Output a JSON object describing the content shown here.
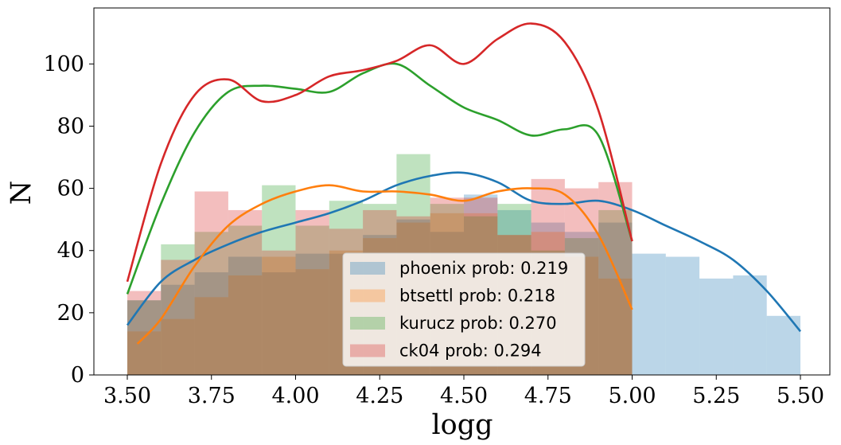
{
  "chart_data": {
    "type": "histogram",
    "xlabel": "logg",
    "ylabel": "N",
    "xlim": [
      3.4,
      5.55
    ],
    "ylim": [
      0,
      118
    ],
    "xticks": [
      "3.50",
      "3.75",
      "4.00",
      "4.25",
      "4.50",
      "4.75",
      "5.00",
      "5.25",
      "5.50"
    ],
    "yticks": [
      "0",
      "20",
      "40",
      "60",
      "80",
      "100"
    ],
    "legend_position": "lower-center",
    "series": [
      {
        "name": "phoenix prob: 0.219",
        "color": "#1f77b4",
        "bin_edges": [
          3.5,
          3.6,
          3.7,
          3.8,
          3.9,
          4.0,
          4.1,
          4.2,
          4.3,
          4.4,
          4.5,
          4.6,
          4.7,
          4.8,
          4.9,
          5.0,
          5.1,
          5.2,
          5.3,
          5.4,
          5.5
        ],
        "counts": [
          24,
          29,
          33,
          38,
          33,
          39,
          39,
          45,
          50,
          46,
          58,
          53,
          49,
          46,
          49,
          39,
          38,
          31,
          32,
          19
        ],
        "kde_x": [
          3.5,
          3.6,
          3.7,
          3.8,
          3.9,
          4.0,
          4.1,
          4.2,
          4.3,
          4.4,
          4.5,
          4.6,
          4.7,
          4.8,
          4.9,
          5.0,
          5.1,
          5.2,
          5.3,
          5.4,
          5.5
        ],
        "kde_y": [
          16,
          30,
          37,
          42,
          46,
          49,
          52,
          56,
          61,
          64,
          65,
          62,
          56,
          55,
          56,
          53,
          48,
          43,
          37,
          27,
          14
        ]
      },
      {
        "name": "btsettl prob: 0.218",
        "color": "#ff7f0e",
        "bin_edges": [
          3.5,
          3.6,
          3.7,
          3.8,
          3.9,
          4.0,
          4.1,
          4.2,
          4.3,
          4.4,
          4.5,
          4.6,
          4.7,
          4.8,
          4.9,
          5.0
        ],
        "counts": [
          14,
          18,
          25,
          32,
          38,
          34,
          40,
          44,
          49,
          52,
          52,
          45,
          46,
          38,
          31
        ],
        "kde_x": [
          3.53,
          3.6,
          3.7,
          3.8,
          3.9,
          4.0,
          4.1,
          4.2,
          4.3,
          4.4,
          4.5,
          4.6,
          4.7,
          4.8,
          4.9,
          5.0
        ],
        "kde_y": [
          10,
          18,
          35,
          48,
          55,
          59,
          61,
          59,
          59,
          58,
          56,
          59,
          60,
          58,
          45,
          21
        ]
      },
      {
        "name": "kurucz prob: 0.270",
        "color": "#2ca02c",
        "bin_edges": [
          3.5,
          3.6,
          3.7,
          3.8,
          3.9,
          4.0,
          4.1,
          4.2,
          4.3,
          4.4,
          4.5,
          4.6,
          4.7,
          4.8,
          4.9,
          5.0
        ],
        "counts": [
          24,
          42,
          46,
          48,
          61,
          48,
          56,
          55,
          71,
          55,
          51,
          55,
          40,
          44,
          53
        ],
        "kde_x": [
          3.5,
          3.6,
          3.7,
          3.8,
          3.9,
          4.0,
          4.1,
          4.2,
          4.3,
          4.4,
          4.5,
          4.6,
          4.7,
          4.8,
          4.9,
          5.0
        ],
        "kde_y": [
          26,
          55,
          78,
          91,
          93,
          92,
          91,
          97,
          100,
          93,
          86,
          82,
          77,
          79,
          77,
          43
        ]
      },
      {
        "name": "ck04 prob: 0.294",
        "color": "#d62728",
        "bin_edges": [
          3.5,
          3.6,
          3.7,
          3.8,
          3.9,
          4.0,
          4.1,
          4.2,
          4.3,
          4.4,
          4.5,
          4.6,
          4.7,
          4.8,
          4.9,
          5.0
        ],
        "counts": [
          27,
          37,
          59,
          53,
          40,
          53,
          47,
          53,
          51,
          57,
          57,
          45,
          63,
          60,
          62
        ],
        "kde_x": [
          3.5,
          3.6,
          3.7,
          3.8,
          3.9,
          4.0,
          4.1,
          4.2,
          4.3,
          4.4,
          4.5,
          4.6,
          4.7,
          4.8,
          4.9,
          5.0
        ],
        "kde_y": [
          30,
          68,
          90,
          95,
          88,
          90,
          96,
          98,
          101,
          106,
          100,
          108,
          113,
          107,
          85,
          43
        ]
      }
    ]
  }
}
